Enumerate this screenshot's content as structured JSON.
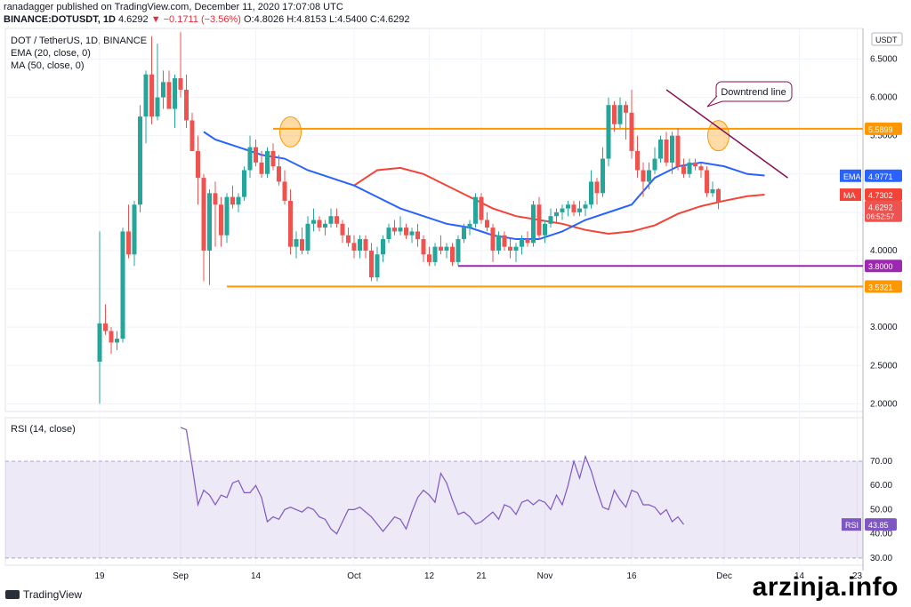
{
  "header": {
    "line1": "ranadagger published on TradingView.com, December 11, 2020 17:07:08 UTC",
    "line2_symbol": "BINANCE:DOTUSDT, 1D",
    "line2_price": "4.6292",
    "line2_change": "▼ −0.1711 (−3.56%)",
    "line2_ohlc": "O:4.8026 H:4.8153 L:4.5400 C:4.6292"
  },
  "legend": {
    "symbol": "DOT / TetherUS, 1D, BINANCE",
    "ema": "EMA (20, close, 0)",
    "ma": "MA (50, close, 0)",
    "rsi": "RSI (14, close)"
  },
  "brand": "TradingView",
  "watermark": "arzinja.info",
  "colors": {
    "up": "#26a69a",
    "down": "#ef5350",
    "ema": "#2962ff",
    "ma": "#f44336",
    "orange": "#ff9800",
    "purple": "#9c27b0",
    "rsi": "#7e57c2",
    "trend": "#880e4f"
  },
  "chart_data": {
    "type": "candlestick",
    "price_axis": {
      "unit": "USDT",
      "ticks": [
        "6.5000",
        "6.0000",
        "5.5000",
        "5.0000",
        "4.5000",
        "4.0000",
        "3.5000",
        "3.0000",
        "2.5000",
        "2.0000"
      ],
      "ylim": [
        1.9,
        6.9
      ],
      "unit_label": "USDT"
    },
    "time_axis": {
      "ticks": [
        "19",
        "Sep",
        "14",
        "Oct",
        "12",
        "21",
        "Nov",
        "16",
        "Dec",
        "14",
        "23"
      ]
    },
    "candles": [
      {
        "o": 2.55,
        "h": 4.25,
        "l": 2.0,
        "c": 3.05
      },
      {
        "o": 3.05,
        "h": 3.3,
        "l": 2.9,
        "c": 2.95
      },
      {
        "o": 2.95,
        "h": 3.0,
        "l": 2.65,
        "c": 2.8
      },
      {
        "o": 2.8,
        "h": 2.95,
        "l": 2.7,
        "c": 2.85
      },
      {
        "o": 2.85,
        "h": 4.3,
        "l": 2.8,
        "c": 4.25
      },
      {
        "o": 4.25,
        "h": 4.6,
        "l": 3.9,
        "c": 3.95
      },
      {
        "o": 3.95,
        "h": 4.65,
        "l": 3.8,
        "c": 4.6
      },
      {
        "o": 4.6,
        "h": 5.9,
        "l": 4.5,
        "c": 5.75
      },
      {
        "o": 5.75,
        "h": 6.35,
        "l": 5.4,
        "c": 6.3
      },
      {
        "o": 6.3,
        "h": 6.8,
        "l": 5.65,
        "c": 5.75
      },
      {
        "o": 5.75,
        "h": 6.7,
        "l": 5.7,
        "c": 6.0
      },
      {
        "o": 6.0,
        "h": 6.35,
        "l": 5.85,
        "c": 6.2
      },
      {
        "o": 6.2,
        "h": 6.35,
        "l": 5.85,
        "c": 5.85
      },
      {
        "o": 5.85,
        "h": 6.3,
        "l": 5.6,
        "c": 6.25
      },
      {
        "o": 6.25,
        "h": 6.85,
        "l": 6.0,
        "c": 6.1
      },
      {
        "o": 6.1,
        "h": 6.3,
        "l": 5.6,
        "c": 5.7
      },
      {
        "o": 5.7,
        "h": 5.8,
        "l": 5.3,
        "c": 5.3
      },
      {
        "o": 5.3,
        "h": 5.5,
        "l": 4.6,
        "c": 4.95
      },
      {
        "o": 4.95,
        "h": 5.0,
        "l": 3.6,
        "c": 4.0
      },
      {
        "o": 4.0,
        "h": 4.8,
        "l": 3.55,
        "c": 4.75
      },
      {
        "o": 4.75,
        "h": 4.9,
        "l": 4.05,
        "c": 4.6
      },
      {
        "o": 4.6,
        "h": 4.7,
        "l": 4.05,
        "c": 4.2
      },
      {
        "o": 4.2,
        "h": 4.75,
        "l": 4.1,
        "c": 4.7
      },
      {
        "o": 4.7,
        "h": 4.85,
        "l": 4.55,
        "c": 4.6
      },
      {
        "o": 4.6,
        "h": 4.75,
        "l": 4.5,
        "c": 4.7
      },
      {
        "o": 4.7,
        "h": 5.1,
        "l": 4.65,
        "c": 5.05
      },
      {
        "o": 5.05,
        "h": 5.5,
        "l": 4.95,
        "c": 5.35
      },
      {
        "o": 5.35,
        "h": 5.45,
        "l": 5.1,
        "c": 5.15
      },
      {
        "o": 5.15,
        "h": 5.3,
        "l": 4.95,
        "c": 5.0
      },
      {
        "o": 5.0,
        "h": 5.35,
        "l": 4.95,
        "c": 5.3
      },
      {
        "o": 5.3,
        "h": 5.4,
        "l": 5.05,
        "c": 5.1
      },
      {
        "o": 5.1,
        "h": 5.25,
        "l": 4.85,
        "c": 4.9
      },
      {
        "o": 4.9,
        "h": 5.05,
        "l": 4.6,
        "c": 4.65
      },
      {
        "o": 4.65,
        "h": 4.8,
        "l": 3.95,
        "c": 4.05
      },
      {
        "o": 4.05,
        "h": 4.25,
        "l": 3.9,
        "c": 4.15
      },
      {
        "o": 4.15,
        "h": 4.3,
        "l": 3.95,
        "c": 4.0
      },
      {
        "o": 4.0,
        "h": 4.45,
        "l": 3.95,
        "c": 4.35
      },
      {
        "o": 4.35,
        "h": 4.55,
        "l": 4.25,
        "c": 4.4
      },
      {
        "o": 4.4,
        "h": 4.45,
        "l": 4.25,
        "c": 4.3
      },
      {
        "o": 4.3,
        "h": 4.4,
        "l": 4.2,
        "c": 4.35
      },
      {
        "o": 4.35,
        "h": 4.55,
        "l": 4.3,
        "c": 4.45
      },
      {
        "o": 4.45,
        "h": 4.55,
        "l": 4.3,
        "c": 4.35
      },
      {
        "o": 4.35,
        "h": 4.4,
        "l": 4.1,
        "c": 4.2
      },
      {
        "o": 4.2,
        "h": 4.3,
        "l": 4.05,
        "c": 4.1
      },
      {
        "o": 4.1,
        "h": 4.2,
        "l": 3.9,
        "c": 4.0
      },
      {
        "o": 4.0,
        "h": 4.2,
        "l": 3.9,
        "c": 4.15
      },
      {
        "o": 4.15,
        "h": 4.2,
        "l": 3.9,
        "c": 4.0
      },
      {
        "o": 4.0,
        "h": 4.1,
        "l": 3.6,
        "c": 3.65
      },
      {
        "o": 3.65,
        "h": 4.05,
        "l": 3.6,
        "c": 3.95
      },
      {
        "o": 3.95,
        "h": 4.2,
        "l": 3.85,
        "c": 4.15
      },
      {
        "o": 4.15,
        "h": 4.35,
        "l": 4.1,
        "c": 4.3
      },
      {
        "o": 4.3,
        "h": 4.4,
        "l": 4.2,
        "c": 4.25
      },
      {
        "o": 4.25,
        "h": 4.45,
        "l": 4.2,
        "c": 4.3
      },
      {
        "o": 4.3,
        "h": 4.35,
        "l": 4.15,
        "c": 4.2
      },
      {
        "o": 4.2,
        "h": 4.3,
        "l": 4.1,
        "c": 4.25
      },
      {
        "o": 4.25,
        "h": 4.35,
        "l": 4.05,
        "c": 4.15
      },
      {
        "o": 4.15,
        "h": 4.2,
        "l": 3.85,
        "c": 3.95
      },
      {
        "o": 3.95,
        "h": 4.05,
        "l": 3.8,
        "c": 3.85
      },
      {
        "o": 3.85,
        "h": 4.1,
        "l": 3.8,
        "c": 4.05
      },
      {
        "o": 4.05,
        "h": 4.2,
        "l": 3.95,
        "c": 4.0
      },
      {
        "o": 4.0,
        "h": 4.1,
        "l": 3.9,
        "c": 4.05
      },
      {
        "o": 4.05,
        "h": 4.1,
        "l": 3.8,
        "c": 3.85
      },
      {
        "o": 3.85,
        "h": 4.2,
        "l": 3.8,
        "c": 4.15
      },
      {
        "o": 4.15,
        "h": 4.35,
        "l": 4.1,
        "c": 4.3
      },
      {
        "o": 4.3,
        "h": 4.4,
        "l": 4.2,
        "c": 4.35
      },
      {
        "o": 4.35,
        "h": 4.75,
        "l": 4.3,
        "c": 4.7
      },
      {
        "o": 4.7,
        "h": 4.75,
        "l": 4.35,
        "c": 4.4
      },
      {
        "o": 4.4,
        "h": 4.5,
        "l": 4.25,
        "c": 4.3
      },
      {
        "o": 4.3,
        "h": 4.35,
        "l": 3.85,
        "c": 4.0
      },
      {
        "o": 4.0,
        "h": 4.25,
        "l": 3.95,
        "c": 4.2
      },
      {
        "o": 4.2,
        "h": 4.25,
        "l": 4.0,
        "c": 4.05
      },
      {
        "o": 4.05,
        "h": 4.15,
        "l": 3.9,
        "c": 4.0
      },
      {
        "o": 4.0,
        "h": 4.1,
        "l": 3.85,
        "c": 4.05
      },
      {
        "o": 4.05,
        "h": 4.2,
        "l": 3.95,
        "c": 4.15
      },
      {
        "o": 4.15,
        "h": 4.25,
        "l": 4.05,
        "c": 4.1
      },
      {
        "o": 4.1,
        "h": 4.65,
        "l": 4.05,
        "c": 4.6
      },
      {
        "o": 4.6,
        "h": 4.7,
        "l": 4.15,
        "c": 4.2
      },
      {
        "o": 4.2,
        "h": 4.4,
        "l": 4.1,
        "c": 4.35
      },
      {
        "o": 4.35,
        "h": 4.55,
        "l": 4.3,
        "c": 4.45
      },
      {
        "o": 4.45,
        "h": 4.55,
        "l": 4.35,
        "c": 4.5
      },
      {
        "o": 4.5,
        "h": 4.6,
        "l": 4.4,
        "c": 4.55
      },
      {
        "o": 4.55,
        "h": 4.65,
        "l": 4.45,
        "c": 4.6
      },
      {
        "o": 4.6,
        "h": 4.65,
        "l": 4.45,
        "c": 4.5
      },
      {
        "o": 4.5,
        "h": 4.65,
        "l": 4.45,
        "c": 4.55
      },
      {
        "o": 4.55,
        "h": 4.65,
        "l": 4.45,
        "c": 4.6
      },
      {
        "o": 4.6,
        "h": 5.05,
        "l": 4.55,
        "c": 4.9
      },
      {
        "o": 4.9,
        "h": 4.95,
        "l": 4.6,
        "c": 4.75
      },
      {
        "o": 4.75,
        "h": 5.35,
        "l": 4.7,
        "c": 5.2
      },
      {
        "o": 5.2,
        "h": 6.0,
        "l": 5.1,
        "c": 5.9
      },
      {
        "o": 5.9,
        "h": 5.95,
        "l": 5.55,
        "c": 5.65
      },
      {
        "o": 5.65,
        "h": 6.0,
        "l": 5.6,
        "c": 5.9
      },
      {
        "o": 5.9,
        "h": 5.95,
        "l": 5.45,
        "c": 5.8
      },
      {
        "o": 5.8,
        "h": 6.1,
        "l": 5.2,
        "c": 5.3
      },
      {
        "o": 5.3,
        "h": 5.5,
        "l": 4.95,
        "c": 5.05
      },
      {
        "o": 5.05,
        "h": 5.15,
        "l": 4.7,
        "c": 4.9
      },
      {
        "o": 4.9,
        "h": 5.15,
        "l": 4.8,
        "c": 5.05
      },
      {
        "o": 5.05,
        "h": 5.35,
        "l": 5.0,
        "c": 5.2
      },
      {
        "o": 5.2,
        "h": 5.5,
        "l": 5.15,
        "c": 5.45
      },
      {
        "o": 5.45,
        "h": 5.55,
        "l": 5.1,
        "c": 5.15
      },
      {
        "o": 5.15,
        "h": 5.55,
        "l": 5.0,
        "c": 5.5
      },
      {
        "o": 5.5,
        "h": 5.6,
        "l": 5.05,
        "c": 5.1
      },
      {
        "o": 5.1,
        "h": 5.2,
        "l": 4.95,
        "c": 5.0
      },
      {
        "o": 5.0,
        "h": 5.2,
        "l": 4.95,
        "c": 5.15
      },
      {
        "o": 5.15,
        "h": 5.2,
        "l": 5.05,
        "c": 5.1
      },
      {
        "o": 5.1,
        "h": 5.15,
        "l": 4.95,
        "c": 5.05
      },
      {
        "o": 5.05,
        "h": 5.1,
        "l": 4.7,
        "c": 4.75
      },
      {
        "o": 4.75,
        "h": 4.9,
        "l": 4.7,
        "c": 4.8
      },
      {
        "o": 4.8026,
        "h": 4.8153,
        "l": 4.54,
        "c": 4.6292
      }
    ],
    "ema20_value": "4.9771",
    "ma50_value": "4.7302",
    "last_price": "4.6292",
    "countdown": "06:52:57",
    "ema20_points": [
      [
        18,
        5.55
      ],
      [
        20,
        5.45
      ],
      [
        24,
        5.35
      ],
      [
        28,
        5.25
      ],
      [
        32,
        5.2
      ],
      [
        36,
        5.05
      ],
      [
        40,
        4.95
      ],
      [
        44,
        4.85
      ],
      [
        48,
        4.7
      ],
      [
        52,
        4.55
      ],
      [
        56,
        4.45
      ],
      [
        60,
        4.35
      ],
      [
        64,
        4.3
      ],
      [
        68,
        4.2
      ],
      [
        72,
        4.15
      ],
      [
        76,
        4.15
      ],
      [
        80,
        4.25
      ],
      [
        84,
        4.4
      ],
      [
        88,
        4.5
      ],
      [
        92,
        4.6
      ],
      [
        96,
        4.95
      ],
      [
        100,
        5.1
      ],
      [
        104,
        5.15
      ],
      [
        108,
        5.1
      ],
      [
        110,
        5.05
      ],
      [
        112,
        5.0
      ],
      [
        115,
        4.98
      ]
    ],
    "ma50_points": [
      [
        44,
        4.85
      ],
      [
        48,
        5.05
      ],
      [
        52,
        5.08
      ],
      [
        56,
        5.0
      ],
      [
        60,
        4.85
      ],
      [
        64,
        4.7
      ],
      [
        68,
        4.55
      ],
      [
        72,
        4.45
      ],
      [
        76,
        4.4
      ],
      [
        80,
        4.35
      ],
      [
        84,
        4.27
      ],
      [
        88,
        4.22
      ],
      [
        92,
        4.25
      ],
      [
        96,
        4.33
      ],
      [
        100,
        4.48
      ],
      [
        104,
        4.58
      ],
      [
        108,
        4.65
      ],
      [
        112,
        4.71
      ],
      [
        115,
        4.73
      ]
    ],
    "levels": [
      {
        "label": "5.5899",
        "value": 5.5899,
        "color": "#ff9800",
        "from": 30
      },
      {
        "label": "3.8000",
        "value": 3.8,
        "color": "#9c27b0",
        "from": 62
      },
      {
        "label": "3.5321",
        "value": 3.5321,
        "color": "#ff9800",
        "from": 22
      }
    ],
    "trendline": {
      "from": [
        98,
        6.1
      ],
      "to": [
        119,
        4.95
      ]
    },
    "annotation": "Downtrend line",
    "circles": [
      [
        33,
        5.55
      ],
      [
        107,
        5.5
      ]
    ],
    "rsi": {
      "ticks": [
        "70.00",
        "60.00",
        "50.00",
        "40.00",
        "30.00"
      ],
      "ylim": [
        27,
        88
      ],
      "overbought": 70,
      "oversold": 30,
      "value_label": "43.85",
      "values": [
        84,
        83,
        68,
        52,
        58,
        56,
        52,
        56,
        55,
        61,
        62,
        57,
        57,
        60,
        55,
        45,
        47,
        46,
        50,
        51,
        50,
        49,
        51,
        50,
        47,
        46,
        42,
        40,
        45,
        50,
        50,
        51,
        49,
        47,
        44,
        41,
        44,
        47,
        46,
        42,
        49,
        55,
        58,
        56,
        53,
        65,
        61,
        54,
        48,
        49,
        47,
        44,
        45,
        47,
        49,
        46,
        52,
        51,
        48,
        53,
        54,
        52,
        54,
        53,
        50,
        56,
        52,
        60,
        70,
        63,
        72,
        66,
        58,
        51,
        50,
        58,
        54,
        51,
        58,
        57,
        52,
        52,
        51,
        48,
        50,
        45,
        47,
        43.85
      ]
    }
  }
}
